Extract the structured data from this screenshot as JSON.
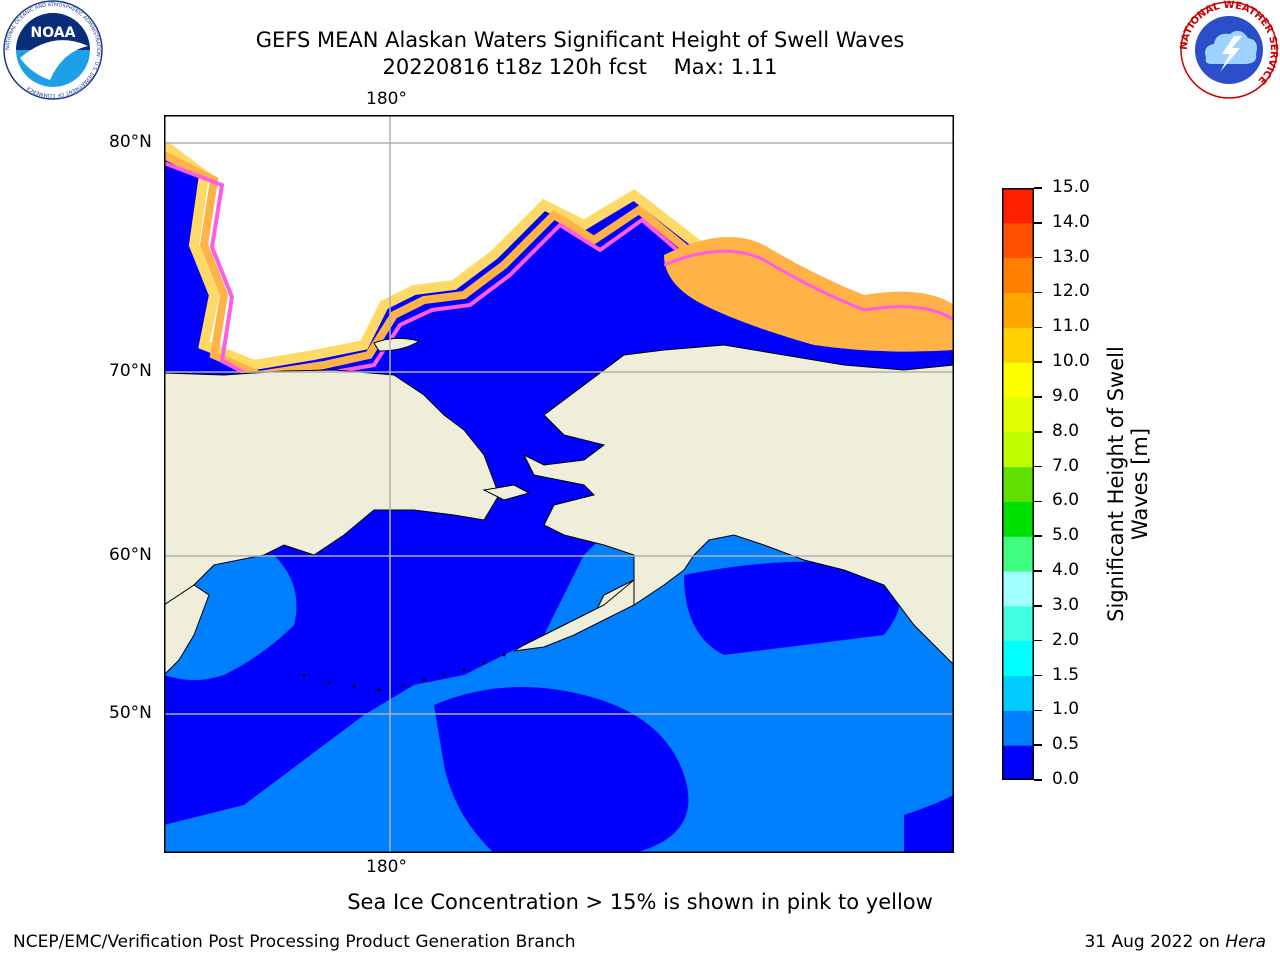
{
  "header": {
    "title": "GEFS MEAN Alaskan Waters Significant Height of Swell Waves",
    "subtitle": "20220816 t18z 120h fcst    Max: 1.11"
  },
  "logos": {
    "noaa_text": "NOAA",
    "noaa_ring": "NATIONAL OCEANIC AND ATMOSPHERIC ADMINISTRATION · U.S. DEPARTMENT OF COMMERCE",
    "nws_ring": "NATIONAL WEATHER SERVICE"
  },
  "map": {
    "lon_label_top": "180°",
    "lon_label_bottom": "180°",
    "lat_labels": [
      "80°N",
      "70°N",
      "60°N",
      "50°N"
    ]
  },
  "colorbar": {
    "label": "Significant Height of Swell Waves [m]",
    "ticks": [
      "0.0",
      "0.5",
      "1.0",
      "1.5",
      "2.0",
      "3.0",
      "4.0",
      "5.0",
      "6.0",
      "7.0",
      "8.0",
      "9.0",
      "10.0",
      "11.0",
      "12.0",
      "13.0",
      "14.0",
      "15.0"
    ],
    "colors": [
      "#0000ff",
      "#0080ff",
      "#00ccff",
      "#00ffff",
      "#40ffe0",
      "#a0ffff",
      "#40ff80",
      "#00e000",
      "#60e000",
      "#c0ff00",
      "#e0ff00",
      "#ffff00",
      "#ffd000",
      "#ffa500",
      "#ff8000",
      "#ff5000",
      "#ff2000"
    ]
  },
  "colors": {
    "deep": "#0000ff",
    "shallow": "#0080ff",
    "land": "#efeedb",
    "ice_pink": "#ff5ce6",
    "ice_orange": "#ffb347",
    "ice_yellow": "#ffd966"
  },
  "note": "Sea Ice Concentration > 15% is shown in pink to yellow",
  "footer": {
    "left": "NCEP/EMC/Verification Post Processing Product Generation Branch",
    "right_date": "31 Aug 2022 on ",
    "right_machine": "Hera"
  }
}
